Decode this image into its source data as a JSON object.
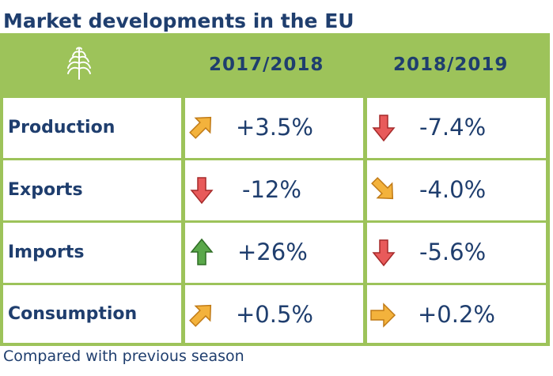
{
  "title": "Market developments in the EU",
  "columns": [
    "2017/2018",
    "2018/2019"
  ],
  "rows": [
    {
      "label": "Production",
      "values": [
        "+3.5%",
        "-7.4%"
      ],
      "arrows": [
        "arrow-up-right-icon",
        "arrow-down-icon"
      ]
    },
    {
      "label": "Exports",
      "values": [
        "-12%",
        "-4.0%"
      ],
      "arrows": [
        "arrow-down-icon",
        "arrow-down-right-icon"
      ]
    },
    {
      "label": "Imports",
      "values": [
        "+26%",
        "-5.6%"
      ],
      "arrows": [
        "arrow-up-icon",
        "arrow-down-icon"
      ]
    },
    {
      "label": "Consumption",
      "values": [
        "+0.5%",
        "+0.2%"
      ],
      "arrows": [
        "arrow-up-right-icon",
        "arrow-right-icon"
      ]
    }
  ],
  "footnote": "Compared with previous season",
  "colors": {
    "header_green": "#9dc35a",
    "text_blue": "#1f3e6e",
    "arrow_red": "#e85a5a",
    "arrow_green": "#5aa84a",
    "arrow_orange": "#f3b23c"
  }
}
